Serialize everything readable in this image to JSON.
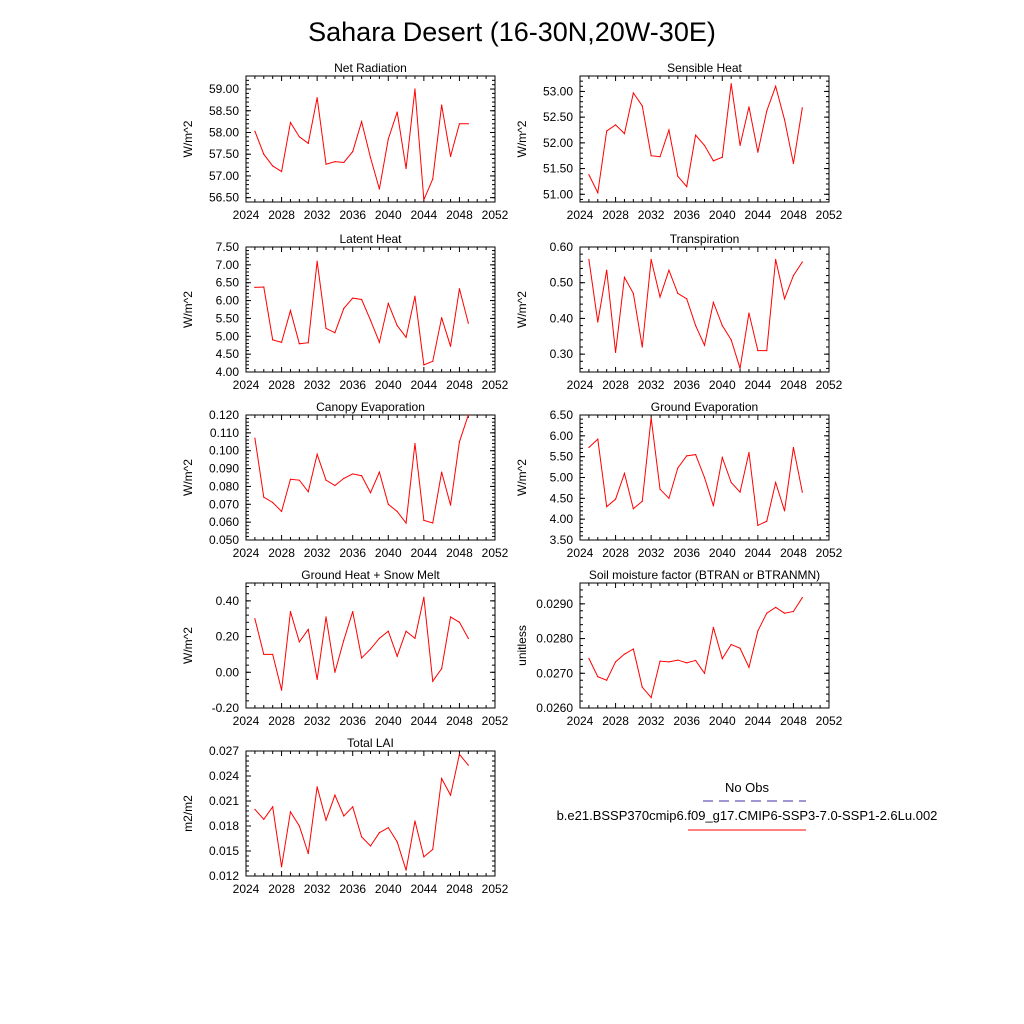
{
  "page_title": "Sahara Desert (16-30N,20W-30E)",
  "legend": {
    "obs_label": "No Obs",
    "obs_color": "#3b2fa6",
    "model_label": "b.e21.BSSP370cmip6.f09_g17.CMIP6-SSP3-7.0-SSP1-2.6Lu.002",
    "model_color": "#ff0000"
  },
  "chart_data": [
    {
      "type": "line",
      "title": "Net Radiation",
      "ylabel": "W/m^2",
      "xlabel": "",
      "xlim": [
        2024,
        2052
      ],
      "ylim": [
        56.4,
        59.3
      ],
      "xticks": [
        "2024",
        "2028",
        "2032",
        "2036",
        "2040",
        "2044",
        "2048",
        "2052"
      ],
      "yticks": [
        "56.50",
        "57.00",
        "57.50",
        "58.00",
        "58.50",
        "59.00"
      ],
      "grid": false,
      "series": [
        {
          "color": "#ff0000",
          "x": [
            2025,
            2026,
            2027,
            2028,
            2029,
            2030,
            2031,
            2032,
            2033,
            2034,
            2035,
            2036,
            2037,
            2038,
            2039,
            2040,
            2041,
            2042,
            2043,
            2044,
            2045,
            2046,
            2047,
            2048,
            2049
          ],
          "values": [
            58.03,
            57.5,
            57.23,
            57.1,
            58.23,
            57.9,
            57.75,
            58.8,
            57.27,
            57.33,
            57.31,
            57.56,
            58.25,
            57.42,
            56.7,
            57.85,
            58.47,
            57.17,
            59.0,
            56.45,
            56.93,
            58.63,
            57.45,
            58.2,
            58.2
          ]
        }
      ]
    },
    {
      "type": "line",
      "title": "Sensible Heat",
      "ylabel": "W/m^2",
      "xlabel": "",
      "xlim": [
        2024,
        2052
      ],
      "ylim": [
        50.85,
        53.3
      ],
      "xticks": [
        "2024",
        "2028",
        "2032",
        "2036",
        "2040",
        "2044",
        "2048",
        "2052"
      ],
      "yticks": [
        "51.00",
        "51.50",
        "52.00",
        "52.50",
        "53.00"
      ],
      "grid": false,
      "series": [
        {
          "color": "#ff0000",
          "x": [
            2025,
            2026,
            2027,
            2028,
            2029,
            2030,
            2031,
            2032,
            2033,
            2034,
            2035,
            2036,
            2037,
            2038,
            2039,
            2040,
            2041,
            2042,
            2043,
            2044,
            2045,
            2046,
            2047,
            2048,
            2049
          ],
          "values": [
            51.38,
            51.03,
            52.23,
            52.35,
            52.18,
            52.97,
            52.72,
            51.75,
            51.73,
            52.25,
            51.35,
            51.15,
            52.15,
            51.95,
            51.65,
            51.72,
            53.15,
            51.95,
            52.7,
            51.82,
            52.62,
            53.1,
            52.45,
            51.6,
            52.68
          ]
        }
      ]
    },
    {
      "type": "line",
      "title": "Latent Heat",
      "ylabel": "W/m^2",
      "xlabel": "",
      "xlim": [
        2024,
        2052
      ],
      "ylim": [
        4.0,
        7.5
      ],
      "xticks": [
        "2024",
        "2028",
        "2032",
        "2036",
        "2040",
        "2044",
        "2048",
        "2052"
      ],
      "yticks": [
        "4.00",
        "4.50",
        "5.00",
        "5.50",
        "6.00",
        "6.50",
        "7.00",
        "7.50"
      ],
      "grid": false,
      "series": [
        {
          "color": "#ff0000",
          "x": [
            2025,
            2026,
            2027,
            2028,
            2029,
            2030,
            2031,
            2032,
            2033,
            2034,
            2035,
            2036,
            2037,
            2038,
            2039,
            2040,
            2041,
            2042,
            2043,
            2044,
            2045,
            2046,
            2047,
            2048,
            2049
          ],
          "values": [
            6.37,
            6.38,
            4.9,
            4.83,
            5.72,
            4.79,
            4.82,
            7.1,
            5.22,
            5.1,
            5.78,
            6.07,
            6.03,
            5.45,
            4.83,
            5.92,
            5.3,
            4.97,
            6.12,
            4.2,
            4.3,
            5.52,
            4.72,
            6.33,
            5.37
          ]
        }
      ]
    },
    {
      "type": "line",
      "title": "Transpiration",
      "ylabel": "W/m^2",
      "xlabel": "",
      "xlim": [
        2024,
        2052
      ],
      "ylim": [
        0.25,
        0.6
      ],
      "xticks": [
        "2024",
        "2028",
        "2032",
        "2036",
        "2040",
        "2044",
        "2048",
        "2052"
      ],
      "yticks": [
        "0.30",
        "0.40",
        "0.50",
        "0.60"
      ],
      "grid": false,
      "series": [
        {
          "color": "#ff0000",
          "x": [
            2025,
            2026,
            2027,
            2028,
            2029,
            2030,
            2031,
            2032,
            2033,
            2034,
            2035,
            2036,
            2037,
            2038,
            2039,
            2040,
            2041,
            2042,
            2043,
            2044,
            2045,
            2046,
            2047,
            2048,
            2049
          ],
          "values": [
            0.565,
            0.39,
            0.535,
            0.305,
            0.515,
            0.47,
            0.32,
            0.565,
            0.46,
            0.535,
            0.47,
            0.455,
            0.38,
            0.325,
            0.445,
            0.38,
            0.34,
            0.26,
            0.415,
            0.31,
            0.31,
            0.565,
            0.455,
            0.52,
            0.558
          ]
        }
      ]
    },
    {
      "type": "line",
      "title": "Canopy Evaporation",
      "ylabel": "W/m^2",
      "xlabel": "",
      "xlim": [
        2024,
        2052
      ],
      "ylim": [
        0.05,
        0.12
      ],
      "xticks": [
        "2024",
        "2028",
        "2032",
        "2036",
        "2040",
        "2044",
        "2048",
        "2052"
      ],
      "yticks": [
        "0.050",
        "0.060",
        "0.070",
        "0.080",
        "0.090",
        "0.100",
        "0.110",
        "0.120"
      ],
      "grid": false,
      "series": [
        {
          "color": "#ff0000",
          "x": [
            2025,
            2026,
            2027,
            2028,
            2029,
            2030,
            2031,
            2032,
            2033,
            2034,
            2035,
            2036,
            2037,
            2038,
            2039,
            2040,
            2041,
            2042,
            2043,
            2044,
            2045,
            2046,
            2047,
            2048,
            2049
          ],
          "values": [
            0.107,
            0.074,
            0.071,
            0.066,
            0.084,
            0.0835,
            0.077,
            0.098,
            0.0835,
            0.0805,
            0.0845,
            0.087,
            0.086,
            0.0765,
            0.088,
            0.07,
            0.066,
            0.0595,
            0.104,
            0.061,
            0.0595,
            0.088,
            0.0695,
            0.105,
            0.12
          ]
        }
      ]
    },
    {
      "type": "line",
      "title": "Ground Evaporation",
      "ylabel": "W/m^2",
      "xlabel": "",
      "xlim": [
        2024,
        2052
      ],
      "ylim": [
        3.5,
        6.5
      ],
      "xticks": [
        "2024",
        "2028",
        "2032",
        "2036",
        "2040",
        "2044",
        "2048",
        "2052"
      ],
      "yticks": [
        "3.50",
        "4.00",
        "4.50",
        "5.00",
        "5.50",
        "6.00",
        "6.50"
      ],
      "grid": false,
      "series": [
        {
          "color": "#ff0000",
          "x": [
            2025,
            2026,
            2027,
            2028,
            2029,
            2030,
            2031,
            2032,
            2033,
            2034,
            2035,
            2036,
            2037,
            2038,
            2039,
            2040,
            2041,
            2042,
            2043,
            2044,
            2045,
            2046,
            2047,
            2048,
            2049
          ],
          "values": [
            5.72,
            5.92,
            4.3,
            4.48,
            5.1,
            4.25,
            4.43,
            6.43,
            4.72,
            4.5,
            5.23,
            5.52,
            5.55,
            5.0,
            4.32,
            5.48,
            4.88,
            4.65,
            5.6,
            3.85,
            3.95,
            4.88,
            4.2,
            5.72,
            4.65
          ]
        }
      ]
    },
    {
      "type": "line",
      "title": "Ground Heat + Snow Melt",
      "ylabel": "W/m^2",
      "xlabel": "",
      "xlim": [
        2024,
        2052
      ],
      "ylim": [
        -0.2,
        0.5
      ],
      "xticks": [
        "2024",
        "2028",
        "2032",
        "2036",
        "2040",
        "2044",
        "2048",
        "2052"
      ],
      "yticks": [
        "-0.20",
        "0.00",
        "0.20",
        "0.40"
      ],
      "grid": false,
      "series": [
        {
          "color": "#ff0000",
          "x": [
            2025,
            2026,
            2027,
            2028,
            2029,
            2030,
            2031,
            2032,
            2033,
            2034,
            2035,
            2036,
            2037,
            2038,
            2039,
            2040,
            2041,
            2042,
            2043,
            2044,
            2045,
            2046,
            2047,
            2048,
            2049
          ],
          "values": [
            0.3,
            0.1,
            0.1,
            -0.1,
            0.34,
            0.17,
            0.24,
            -0.04,
            0.31,
            0.0,
            0.18,
            0.34,
            0.08,
            0.13,
            0.19,
            0.23,
            0.09,
            0.23,
            0.19,
            0.42,
            -0.05,
            0.02,
            0.31,
            0.28,
            0.19
          ]
        }
      ]
    },
    {
      "type": "line",
      "title": "Soil moisture factor (BTRAN or BTRANMN)",
      "ylabel": "unitless",
      "xlabel": "",
      "xlim": [
        2024,
        2052
      ],
      "ylim": [
        0.026,
        0.0296
      ],
      "xticks": [
        "2024",
        "2028",
        "2032",
        "2036",
        "2040",
        "2044",
        "2048",
        "2052"
      ],
      "yticks": [
        "0.0260",
        "0.0270",
        "0.0280",
        "0.0290"
      ],
      "grid": false,
      "series": [
        {
          "color": "#ff0000",
          "x": [
            2025,
            2026,
            2027,
            2028,
            2029,
            2030,
            2031,
            2032,
            2033,
            2034,
            2035,
            2036,
            2037,
            2038,
            2039,
            2040,
            2041,
            2042,
            2043,
            2044,
            2045,
            2046,
            2047,
            2048,
            2049
          ],
          "values": [
            0.02743,
            0.0269,
            0.0268,
            0.02733,
            0.02755,
            0.0277,
            0.0266,
            0.0263,
            0.02735,
            0.02733,
            0.02738,
            0.0273,
            0.02737,
            0.027,
            0.02832,
            0.02742,
            0.02783,
            0.02772,
            0.02717,
            0.02822,
            0.02873,
            0.0289,
            0.02873,
            0.02878,
            0.02918
          ]
        }
      ]
    },
    {
      "type": "line",
      "title": "Total LAI",
      "ylabel": "m2/m2",
      "xlabel": "",
      "xlim": [
        2024,
        2052
      ],
      "ylim": [
        0.012,
        0.027
      ],
      "xticks": [
        "2024",
        "2028",
        "2032",
        "2036",
        "2040",
        "2044",
        "2048",
        "2052"
      ],
      "yticks": [
        "0.012",
        "0.015",
        "0.018",
        "0.021",
        "0.024",
        "0.027"
      ],
      "grid": false,
      "series": [
        {
          "color": "#ff0000",
          "x": [
            2025,
            2026,
            2027,
            2028,
            2029,
            2030,
            2031,
            2032,
            2033,
            2034,
            2035,
            2036,
            2037,
            2038,
            2039,
            2040,
            2041,
            2042,
            2043,
            2044,
            2045,
            2046,
            2047,
            2048,
            2049
          ],
          "values": [
            0.02,
            0.0188,
            0.0203,
            0.0131,
            0.0197,
            0.018,
            0.0147,
            0.0227,
            0.0187,
            0.0217,
            0.0192,
            0.0203,
            0.0167,
            0.0156,
            0.0172,
            0.0178,
            0.0161,
            0.0127,
            0.0186,
            0.0143,
            0.0152,
            0.0237,
            0.0217,
            0.0266,
            0.0253
          ]
        }
      ]
    }
  ]
}
